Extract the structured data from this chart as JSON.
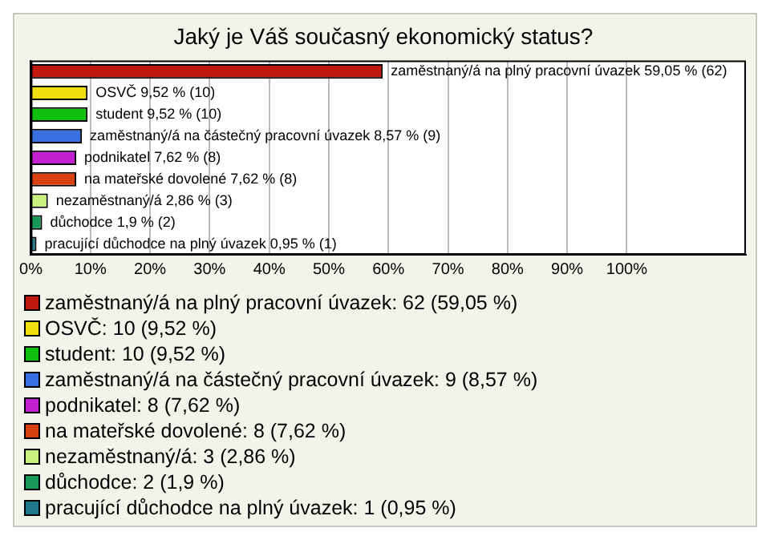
{
  "chart_data": {
    "type": "bar",
    "orientation": "horizontal",
    "stacked": true,
    "title": "Jaký je Váš současný ekonomický status?",
    "categories": [
      null,
      null,
      null,
      null,
      null,
      null,
      null,
      null,
      null
    ],
    "xlim": [
      0,
      120
    ],
    "xticks": [
      {
        "value": 0,
        "label": "0%"
      },
      {
        "value": 10,
        "label": "10%"
      },
      {
        "value": 20,
        "label": "20%"
      },
      {
        "value": 30,
        "label": "30%"
      },
      {
        "value": 40,
        "label": "40%"
      },
      {
        "value": 50,
        "label": "50%"
      },
      {
        "value": 60,
        "label": "60%"
      },
      {
        "value": 70,
        "label": "70%"
      },
      {
        "value": 80,
        "label": "80%"
      },
      {
        "value": 90,
        "label": "90%"
      },
      {
        "value": 100,
        "label": "100%"
      }
    ],
    "grid": "x",
    "legend": "bottom",
    "series": [
      {
        "name": "zaměstnaný/á na plný pracovní úvazek: 62 (59,05 %)",
        "color": "#c0180c",
        "values": [
          59.05,
          null,
          null,
          null,
          null,
          null,
          null,
          null,
          null
        ],
        "value_labels": [
          "zaměstnaný/á na plný pracovní úvazek 59,05 % (62)",
          null,
          null,
          null,
          null,
          null,
          null,
          null,
          null
        ]
      },
      {
        "name": "OSVČ: 10 (9,52 %)",
        "color": "#f0e010",
        "values": [
          null,
          9.52,
          null,
          null,
          null,
          null,
          null,
          null,
          null
        ],
        "value_labels": [
          null,
          "OSVČ 9,52 % (10)",
          null,
          null,
          null,
          null,
          null,
          null,
          null
        ]
      },
      {
        "name": "student: 10 (9,52 %)",
        "color": "#10c010",
        "values": [
          null,
          null,
          9.52,
          null,
          null,
          null,
          null,
          null,
          null
        ],
        "value_labels": [
          null,
          null,
          "student 9,52 % (10)",
          null,
          null,
          null,
          null,
          null,
          null
        ]
      },
      {
        "name": "zaměstnaný/á na částečný pracovní úvazek: 9 (8,57 %)",
        "color": "#3870e0",
        "values": [
          null,
          null,
          null,
          8.57,
          null,
          null,
          null,
          null,
          null
        ],
        "value_labels": [
          null,
          null,
          null,
          "zaměstnaný/á na částečný pracovní úvazek 8,57 % (9)",
          null,
          null,
          null,
          null,
          null
        ]
      },
      {
        "name": "podnikatel: 8 (7,62 %)",
        "color": "#c020d0",
        "values": [
          null,
          null,
          null,
          null,
          7.62,
          null,
          null,
          null,
          null
        ],
        "value_labels": [
          null,
          null,
          null,
          null,
          "podnikatel 7,62 % (8)",
          null,
          null,
          null,
          null
        ]
      },
      {
        "name": "na mateřské dovolené: 8 (7,62 %)",
        "color": "#d84010",
        "values": [
          null,
          null,
          null,
          null,
          null,
          7.62,
          null,
          null,
          null
        ],
        "value_labels": [
          null,
          null,
          null,
          null,
          null,
          "na mateřské dovolené 7,62 % (8)",
          null,
          null,
          null
        ]
      },
      {
        "name": "nezaměstnaný/á: 3 (2,86 %)",
        "color": "#c8f080",
        "values": [
          null,
          null,
          null,
          null,
          null,
          null,
          2.86,
          null,
          null
        ],
        "value_labels": [
          null,
          null,
          null,
          null,
          null,
          null,
          "nezaměstnaný/á 2,86 % (3)",
          null,
          null
        ]
      },
      {
        "name": "důchodce: 2 (1,9 %)",
        "color": "#189858",
        "values": [
          null,
          null,
          null,
          null,
          null,
          null,
          null,
          1.9,
          null
        ],
        "value_labels": [
          null,
          null,
          null,
          null,
          null,
          null,
          null,
          "důchodce 1,9 % (2)",
          null
        ]
      },
      {
        "name": "pracující důchodce na plný úvazek: 1 (0,95 %)",
        "color": "#207888",
        "values": [
          null,
          null,
          null,
          null,
          null,
          null,
          null,
          null,
          0.95
        ],
        "value_labels": [
          null,
          null,
          null,
          null,
          null,
          null,
          null,
          null,
          "pracující důchodce na plný úvazek 0,95 % (1)"
        ]
      }
    ]
  }
}
